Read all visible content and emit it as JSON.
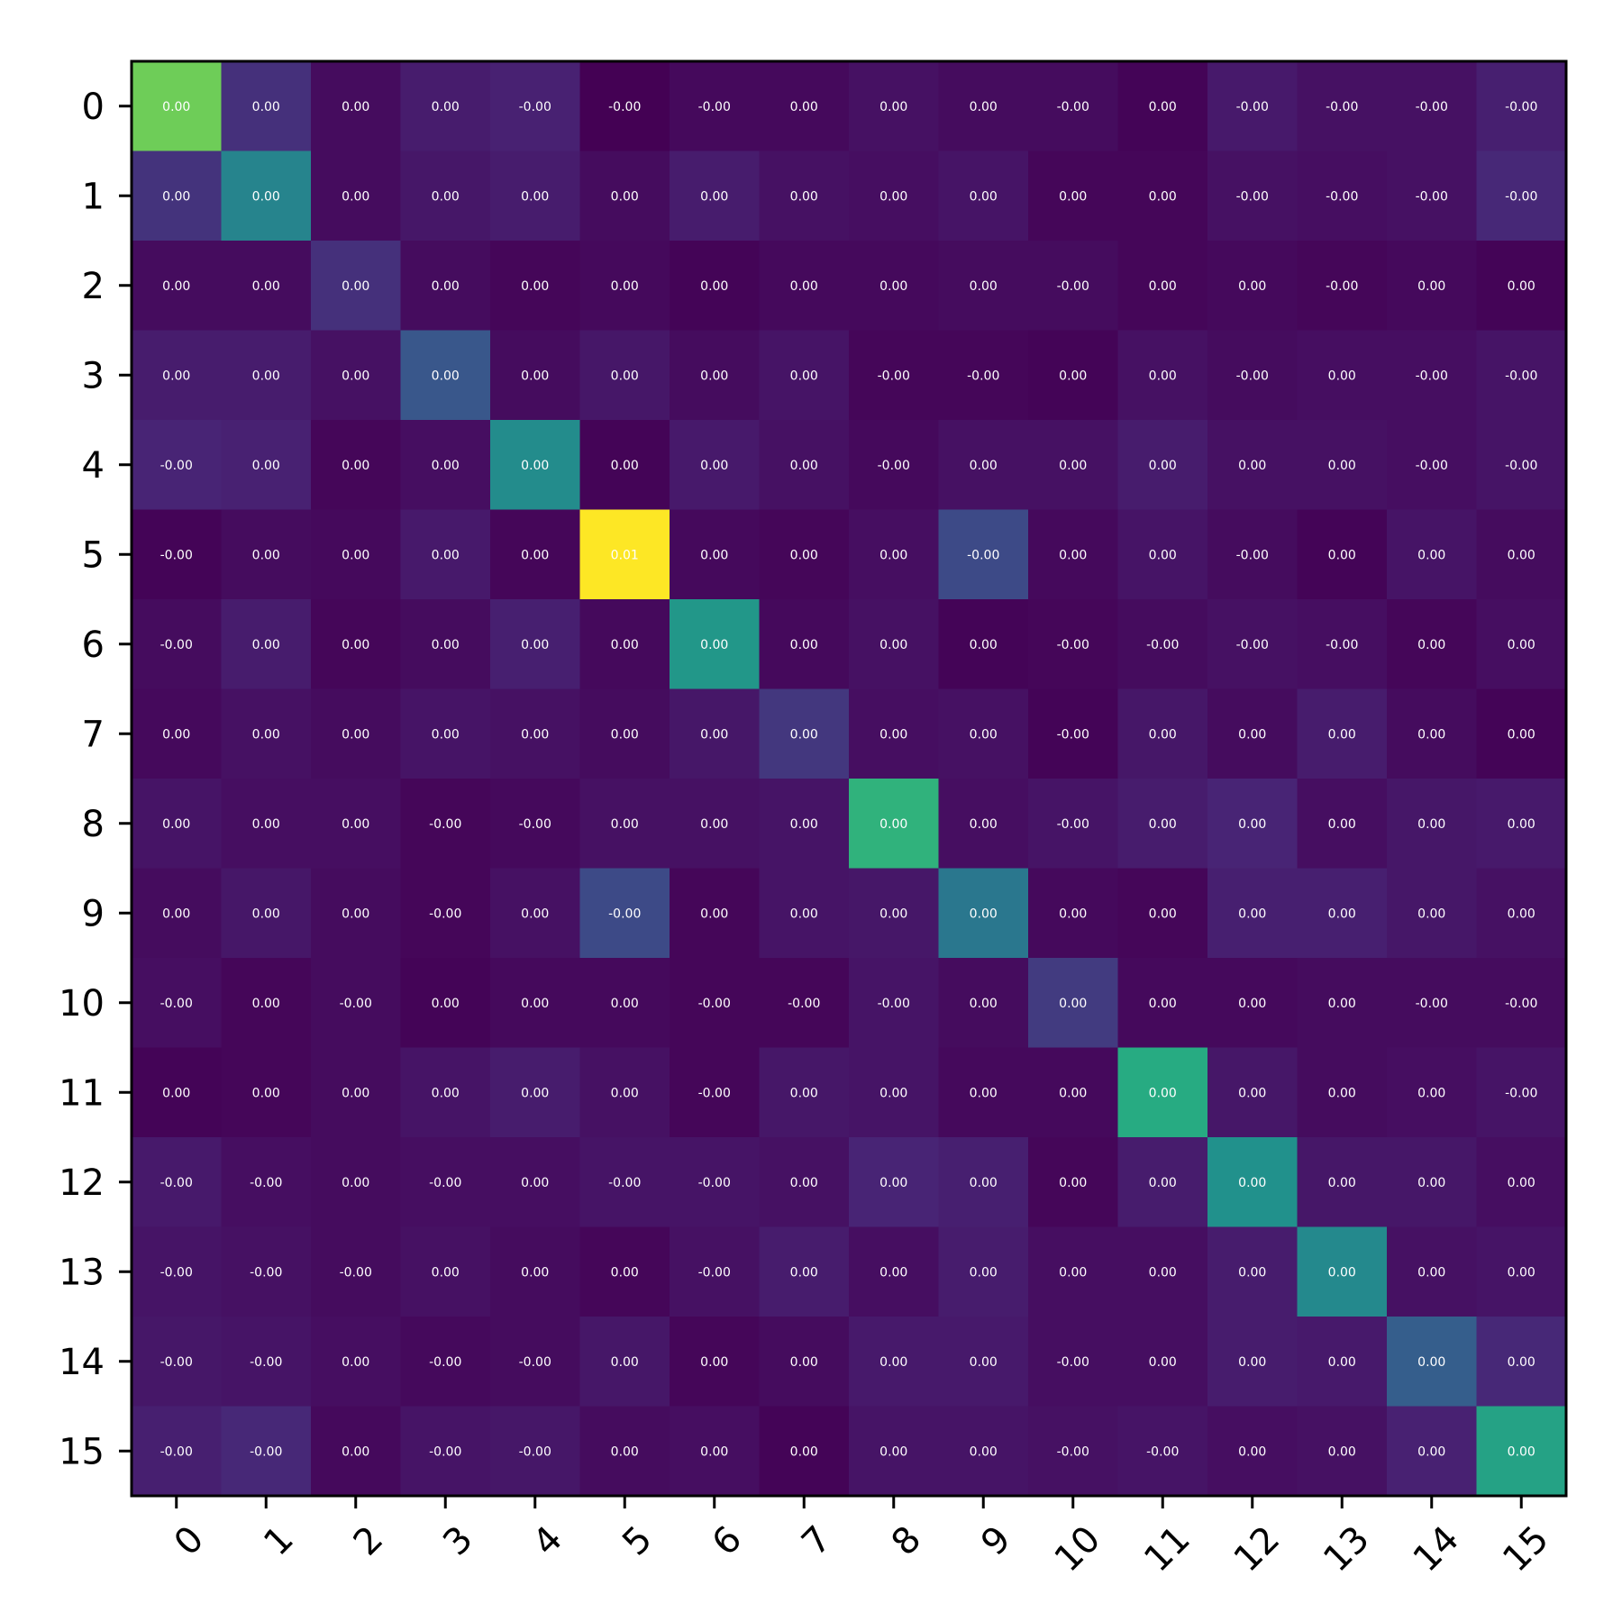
{
  "chart_data": {
    "type": "heatmap",
    "title": "",
    "xlabel": "",
    "ylabel": "",
    "x_tick_labels": [
      "0",
      "1",
      "2",
      "3",
      "4",
      "5",
      "6",
      "7",
      "8",
      "9",
      "10",
      "11",
      "12",
      "13",
      "14",
      "15"
    ],
    "y_tick_labels": [
      "0",
      "1",
      "2",
      "3",
      "4",
      "5",
      "6",
      "7",
      "8",
      "9",
      "10",
      "11",
      "12",
      "13",
      "14",
      "15"
    ],
    "x_tick_rotation_deg": 45,
    "colormap": "viridis",
    "grid": false,
    "colorbar": false,
    "value_labels": [
      [
        "0.00",
        "0.00",
        "0.00",
        "0.00",
        "-0.00",
        "-0.00",
        "-0.00",
        "0.00",
        "0.00",
        "0.00",
        "-0.00",
        "0.00",
        "-0.00",
        "-0.00",
        "-0.00",
        "-0.00"
      ],
      [
        "0.00",
        "0.00",
        "0.00",
        "0.00",
        "0.00",
        "0.00",
        "0.00",
        "0.00",
        "0.00",
        "0.00",
        "0.00",
        "0.00",
        "-0.00",
        "-0.00",
        "-0.00",
        "-0.00"
      ],
      [
        "0.00",
        "0.00",
        "0.00",
        "0.00",
        "0.00",
        "0.00",
        "0.00",
        "0.00",
        "0.00",
        "0.00",
        "-0.00",
        "0.00",
        "0.00",
        "-0.00",
        "0.00",
        "0.00"
      ],
      [
        "0.00",
        "0.00",
        "0.00",
        "0.00",
        "0.00",
        "0.00",
        "0.00",
        "0.00",
        "-0.00",
        "-0.00",
        "0.00",
        "0.00",
        "-0.00",
        "0.00",
        "-0.00",
        "-0.00"
      ],
      [
        "-0.00",
        "0.00",
        "0.00",
        "0.00",
        "0.00",
        "0.00",
        "0.00",
        "0.00",
        "-0.00",
        "0.00",
        "0.00",
        "0.00",
        "0.00",
        "0.00",
        "-0.00",
        "-0.00"
      ],
      [
        "-0.00",
        "0.00",
        "0.00",
        "0.00",
        "0.00",
        "0.01",
        "0.00",
        "0.00",
        "0.00",
        "-0.00",
        "0.00",
        "0.00",
        "-0.00",
        "0.00",
        "0.00",
        "0.00"
      ],
      [
        "-0.00",
        "0.00",
        "0.00",
        "0.00",
        "0.00",
        "0.00",
        "0.00",
        "0.00",
        "0.00",
        "0.00",
        "-0.00",
        "-0.00",
        "-0.00",
        "-0.00",
        "0.00",
        "0.00"
      ],
      [
        "0.00",
        "0.00",
        "0.00",
        "0.00",
        "0.00",
        "0.00",
        "0.00",
        "0.00",
        "0.00",
        "0.00",
        "-0.00",
        "0.00",
        "0.00",
        "0.00",
        "0.00",
        "0.00"
      ],
      [
        "0.00",
        "0.00",
        "0.00",
        "-0.00",
        "-0.00",
        "0.00",
        "0.00",
        "0.00",
        "0.00",
        "0.00",
        "-0.00",
        "0.00",
        "0.00",
        "0.00",
        "0.00",
        "0.00"
      ],
      [
        "0.00",
        "0.00",
        "0.00",
        "-0.00",
        "0.00",
        "-0.00",
        "0.00",
        "0.00",
        "0.00",
        "0.00",
        "0.00",
        "0.00",
        "0.00",
        "0.00",
        "0.00",
        "0.00"
      ],
      [
        "-0.00",
        "0.00",
        "-0.00",
        "0.00",
        "0.00",
        "0.00",
        "-0.00",
        "-0.00",
        "-0.00",
        "0.00",
        "0.00",
        "0.00",
        "0.00",
        "0.00",
        "-0.00",
        "-0.00"
      ],
      [
        "0.00",
        "0.00",
        "0.00",
        "0.00",
        "0.00",
        "0.00",
        "-0.00",
        "0.00",
        "0.00",
        "0.00",
        "0.00",
        "0.00",
        "0.00",
        "0.00",
        "0.00",
        "-0.00"
      ],
      [
        "-0.00",
        "-0.00",
        "0.00",
        "-0.00",
        "0.00",
        "-0.00",
        "-0.00",
        "0.00",
        "0.00",
        "0.00",
        "0.00",
        "0.00",
        "0.00",
        "0.00",
        "0.00",
        "0.00"
      ],
      [
        "-0.00",
        "-0.00",
        "-0.00",
        "0.00",
        "0.00",
        "0.00",
        "-0.00",
        "0.00",
        "0.00",
        "0.00",
        "0.00",
        "0.00",
        "0.00",
        "0.00",
        "0.00",
        "0.00"
      ],
      [
        "-0.00",
        "-0.00",
        "0.00",
        "-0.00",
        "-0.00",
        "0.00",
        "0.00",
        "0.00",
        "0.00",
        "0.00",
        "-0.00",
        "0.00",
        "0.00",
        "0.00",
        "0.00",
        "0.00"
      ],
      [
        "-0.00",
        "-0.00",
        "0.00",
        "-0.00",
        "-0.00",
        "0.00",
        "0.00",
        "0.00",
        "0.00",
        "0.00",
        "-0.00",
        "-0.00",
        "0.00",
        "0.00",
        "0.00",
        "0.00"
      ]
    ],
    "color_intensity": [
      [
        0.78,
        0.16,
        0.04,
        0.1,
        0.12,
        0.0,
        0.03,
        0.03,
        0.06,
        0.04,
        0.04,
        0.01,
        0.09,
        0.06,
        0.06,
        0.11
      ],
      [
        0.17,
        0.45,
        0.04,
        0.08,
        0.1,
        0.04,
        0.1,
        0.06,
        0.05,
        0.07,
        0.02,
        0.02,
        0.06,
        0.05,
        0.06,
        0.14
      ],
      [
        0.04,
        0.04,
        0.16,
        0.04,
        0.02,
        0.03,
        0.01,
        0.03,
        0.03,
        0.04,
        0.04,
        0.02,
        0.03,
        0.02,
        0.03,
        0.01
      ],
      [
        0.1,
        0.1,
        0.06,
        0.27,
        0.04,
        0.08,
        0.04,
        0.07,
        0.02,
        0.02,
        0.01,
        0.06,
        0.04,
        0.05,
        0.05,
        0.07
      ],
      [
        0.13,
        0.12,
        0.02,
        0.05,
        0.48,
        0.01,
        0.09,
        0.06,
        0.03,
        0.06,
        0.06,
        0.1,
        0.06,
        0.06,
        0.05,
        0.07
      ],
      [
        0.01,
        0.04,
        0.03,
        0.09,
        0.02,
        1.0,
        0.03,
        0.02,
        0.05,
        0.23,
        0.03,
        0.07,
        0.04,
        0.01,
        0.07,
        0.04
      ],
      [
        0.04,
        0.1,
        0.02,
        0.04,
        0.11,
        0.03,
        0.53,
        0.03,
        0.06,
        0.01,
        0.02,
        0.04,
        0.06,
        0.05,
        0.02,
        0.05
      ],
      [
        0.03,
        0.06,
        0.04,
        0.07,
        0.06,
        0.04,
        0.08,
        0.18,
        0.05,
        0.06,
        0.01,
        0.08,
        0.04,
        0.1,
        0.04,
        0.01
      ],
      [
        0.07,
        0.05,
        0.05,
        0.02,
        0.03,
        0.06,
        0.06,
        0.07,
        0.65,
        0.05,
        0.07,
        0.1,
        0.13,
        0.05,
        0.08,
        0.09
      ],
      [
        0.04,
        0.08,
        0.04,
        0.02,
        0.06,
        0.23,
        0.02,
        0.07,
        0.08,
        0.4,
        0.03,
        0.02,
        0.11,
        0.11,
        0.08,
        0.06
      ],
      [
        0.05,
        0.02,
        0.04,
        0.01,
        0.03,
        0.03,
        0.02,
        0.02,
        0.07,
        0.04,
        0.19,
        0.03,
        0.03,
        0.04,
        0.04,
        0.04
      ],
      [
        0.01,
        0.02,
        0.04,
        0.07,
        0.1,
        0.06,
        0.02,
        0.08,
        0.07,
        0.03,
        0.03,
        0.62,
        0.08,
        0.04,
        0.05,
        0.07
      ],
      [
        0.09,
        0.05,
        0.04,
        0.05,
        0.05,
        0.07,
        0.07,
        0.06,
        0.13,
        0.11,
        0.02,
        0.1,
        0.5,
        0.08,
        0.08,
        0.05
      ],
      [
        0.07,
        0.06,
        0.04,
        0.06,
        0.04,
        0.02,
        0.06,
        0.1,
        0.05,
        0.1,
        0.05,
        0.05,
        0.1,
        0.47,
        0.06,
        0.07
      ],
      [
        0.08,
        0.07,
        0.05,
        0.03,
        0.04,
        0.08,
        0.02,
        0.04,
        0.09,
        0.09,
        0.05,
        0.05,
        0.1,
        0.09,
        0.3,
        0.14
      ],
      [
        0.11,
        0.14,
        0.03,
        0.07,
        0.08,
        0.04,
        0.05,
        0.01,
        0.07,
        0.07,
        0.06,
        0.07,
        0.05,
        0.06,
        0.12,
        0.58
      ]
    ]
  }
}
